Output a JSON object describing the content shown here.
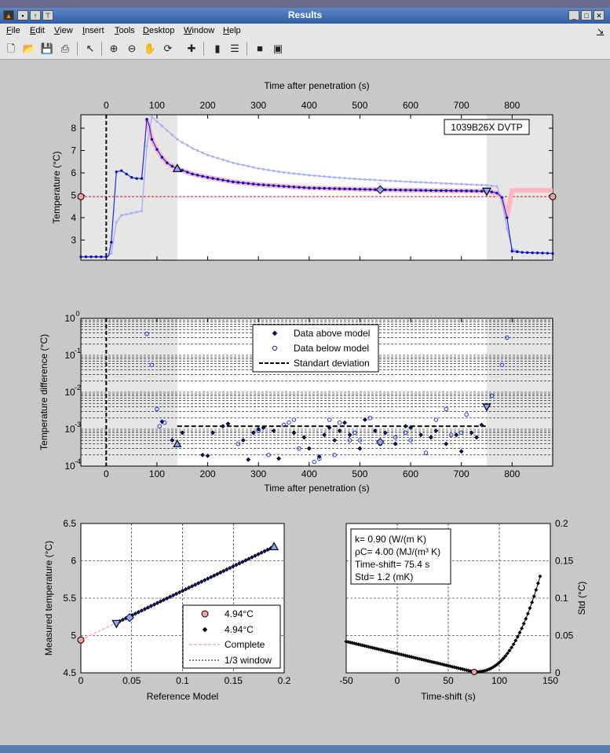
{
  "window": {
    "title": "Results"
  },
  "menu": [
    "File",
    "Edit",
    "View",
    "Insert",
    "Tools",
    "Desktop",
    "Window",
    "Help"
  ],
  "toolbar_icons": [
    "new-file-icon",
    "open-folder-icon",
    "save-icon",
    "print-icon",
    "pointer-icon",
    "zoom-in-icon",
    "zoom-out-icon",
    "pan-hand-icon",
    "rotate-icon",
    "data-cursor-icon",
    "colorbar-icon",
    "legend-icon",
    "hide-tools-icon",
    "show-tools-icon"
  ],
  "chart_data": [
    {
      "type": "line",
      "id": "temperature-time",
      "xlabel": "Time after penetration (s)",
      "ylabel": "Temperature (°C)",
      "xlim": [
        -50,
        880
      ],
      "ylim": [
        2.1,
        8.6
      ],
      "xticks": [
        0,
        100,
        200,
        300,
        400,
        500,
        600,
        700,
        800
      ],
      "yticks": [
        3,
        4,
        5,
        6,
        7,
        8
      ],
      "annotation": "1039B26X   DVTP",
      "reference_temperature": 4.94,
      "grey_windows": [
        [
          -50,
          140
        ],
        [
          750,
          880
        ]
      ],
      "series": [
        {
          "values_x": [
            -50,
            -40,
            -30,
            -20,
            -10,
            0,
            5,
            10,
            20,
            30,
            40,
            50,
            60,
            70,
            80,
            85,
            90,
            100,
            110,
            120,
            130,
            140,
            170,
            200,
            250,
            300,
            350,
            400,
            450,
            500,
            540,
            600,
            650,
            700,
            750,
            760,
            770,
            780,
            790,
            800,
            820,
            840,
            860,
            880
          ],
          "values_y": [
            2.25,
            2.25,
            2.25,
            2.25,
            2.25,
            2.25,
            2.3,
            2.9,
            6.05,
            6.1,
            5.95,
            5.8,
            5.75,
            5.75,
            8.4,
            8.1,
            7.5,
            7.05,
            6.7,
            6.45,
            6.3,
            6.2,
            5.95,
            5.8,
            5.6,
            5.48,
            5.4,
            5.33,
            5.3,
            5.27,
            5.25,
            5.23,
            5.21,
            5.2,
            5.18,
            5.15,
            5.1,
            4.9,
            4.0,
            2.5,
            2.45,
            2.43,
            2.42,
            2.4
          ]
        },
        {
          "values_x": [
            -50,
            0,
            10,
            20,
            30,
            50,
            70,
            80,
            90,
            100,
            120,
            140,
            170,
            200,
            250,
            300,
            350,
            400,
            450,
            500,
            550,
            600,
            650,
            700,
            750,
            770,
            780,
            790,
            800,
            820,
            880
          ],
          "values_y": [
            2.25,
            2.25,
            2.4,
            3.8,
            4.1,
            4.2,
            4.3,
            7.2,
            8.5,
            8.3,
            7.9,
            7.5,
            7.1,
            6.8,
            6.45,
            6.2,
            6.02,
            5.9,
            5.8,
            5.72,
            5.66,
            5.6,
            5.55,
            5.5,
            5.45,
            5.4,
            4.8,
            3.5,
            2.6,
            2.45,
            2.4
          ]
        }
      ]
    },
    {
      "type": "scatter",
      "id": "temperature-difference",
      "xlabel": "Time after penetration (s)",
      "ylabel": "Temperature difference (°C)",
      "yscale": "log",
      "xlim": [
        -50,
        880
      ],
      "ylim": [
        0.0001,
        1
      ],
      "xticks": [
        0,
        100,
        200,
        300,
        400,
        500,
        600,
        700,
        800
      ],
      "yticks_exp": [
        -4,
        -3,
        -2,
        -1,
        0
      ],
      "standard_deviation": 0.0012,
      "legend": [
        "Data above model",
        "Data below model",
        "Standart deviation"
      ],
      "series": [
        {
          "name": "Data above model",
          "x": [
            110,
            130,
            150,
            190,
            200,
            210,
            230,
            240,
            270,
            280,
            290,
            300,
            310,
            330,
            340,
            370,
            390,
            400,
            420,
            430,
            440,
            450,
            460,
            470,
            480,
            500,
            510,
            530,
            550,
            570,
            590,
            600,
            620,
            640,
            650,
            670,
            690,
            700,
            720,
            730,
            740
          ],
          "y": [
            0.0016,
            0.0005,
            0.0008,
            0.0002,
            0.00019,
            0.0008,
            0.0012,
            0.0014,
            0.0005,
            0.00015,
            0.0008,
            0.001,
            0.0011,
            0.0009,
            0.00016,
            0.0008,
            0.0006,
            0.0003,
            0.00018,
            0.0007,
            0.0011,
            0.0005,
            0.0009,
            0.0015,
            0.0007,
            0.0003,
            0.0018,
            0.0009,
            0.0008,
            0.0004,
            0.0012,
            0.0011,
            0.0007,
            0.0006,
            0.0009,
            0.0004,
            0.0007,
            0.00025,
            0.0008,
            0.0006,
            0.0013
          ]
        },
        {
          "name": "Data below model",
          "x": [
            80,
            90,
            100,
            105,
            115,
            260,
            300,
            320,
            350,
            360,
            370,
            380,
            410,
            420,
            440,
            450,
            460,
            480,
            490,
            500,
            520,
            540,
            570,
            590,
            600,
            630,
            650,
            670,
            680,
            700,
            710,
            760,
            780,
            790
          ],
          "y": [
            0.38,
            0.055,
            0.0035,
            0.0012,
            0.0015,
            0.0004,
            0.0009,
            0.0002,
            0.0013,
            0.0015,
            0.0018,
            0.0003,
            0.00013,
            0.00016,
            0.0018,
            0.0002,
            0.0015,
            0.0005,
            0.0008,
            0.0005,
            0.002,
            0.0004,
            0.0006,
            0.0008,
            0.0005,
            0.00023,
            0.0018,
            0.0035,
            0.0007,
            0.0008,
            0.0025,
            0.008,
            0.055,
            0.3
          ]
        }
      ]
    },
    {
      "type": "scatter",
      "id": "measured-vs-model",
      "xlabel": "Reference Model",
      "ylabel": "Measured temperature (°C)",
      "xlim": [
        0,
        0.2
      ],
      "ylim": [
        4.5,
        6.5
      ],
      "xticks": [
        0,
        0.05,
        0.1,
        0.15,
        0.2
      ],
      "yticks": [
        4.5,
        5,
        5.5,
        6,
        6.5
      ],
      "legend": [
        "4.94°C",
        "4.94°C",
        "Complete",
        "1/3 window"
      ],
      "fit_line": {
        "x": [
          0,
          0.19
        ],
        "y": [
          4.94,
          6.19
        ]
      }
    },
    {
      "type": "line",
      "id": "std-vs-timeshift",
      "xlabel": "Time-shift (s)",
      "ylabel": "Std (°C)",
      "xlim": [
        -50,
        150
      ],
      "ylim": [
        0,
        0.2
      ],
      "xticks": [
        -50,
        0,
        50,
        100,
        150
      ],
      "yticks": [
        0,
        0.05,
        0.1,
        0.15,
        0.2
      ],
      "info": [
        "k= 0.90 (W/(m K)",
        "ρC= 4.00 (MJ/(m³ K)",
        "Time-shift= 75.4 s",
        "Std= 1.2 (mK)"
      ],
      "minimum": {
        "x": 75.4,
        "y": 0.0012
      }
    }
  ]
}
